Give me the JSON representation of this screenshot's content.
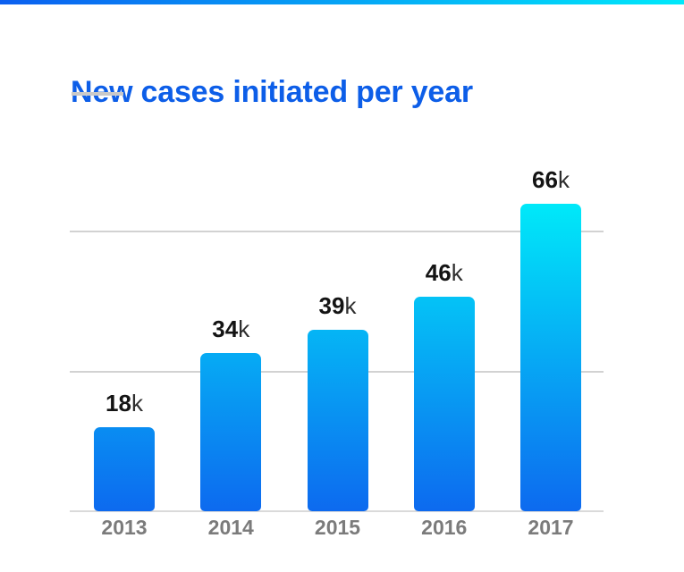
{
  "page": {
    "title": "New cases initiated per year"
  },
  "accent_bar": {
    "gradient_left": "#0b5ff0",
    "gradient_right": "#00e9fa"
  },
  "chart_data": {
    "type": "bar",
    "title": "New cases initiated per year",
    "categories": [
      "2013",
      "2014",
      "2015",
      "2016",
      "2017"
    ],
    "values": [
      18,
      34,
      39,
      46,
      66
    ],
    "unit": "k",
    "data_labels": [
      "18k",
      "34k",
      "39k",
      "46k",
      "66k"
    ],
    "xlabel": "",
    "ylabel": "",
    "ylim": [
      0,
      66
    ],
    "gridline_values": [
      30,
      60
    ],
    "grid": "horizontal-only",
    "legend": "none",
    "colors": {
      "title": "#0d5ee8",
      "title_underline": "#c9c9c9",
      "bar_gradient_top_at_max": "#00e9f9",
      "bar_gradient_bottom": "#0d6aef",
      "gridline": "#d2d2d2",
      "axis_line": "#dadada",
      "value_label": "#141414",
      "value_unit_label": "#2e2e2e",
      "year_label": "#7b7b7b"
    }
  }
}
